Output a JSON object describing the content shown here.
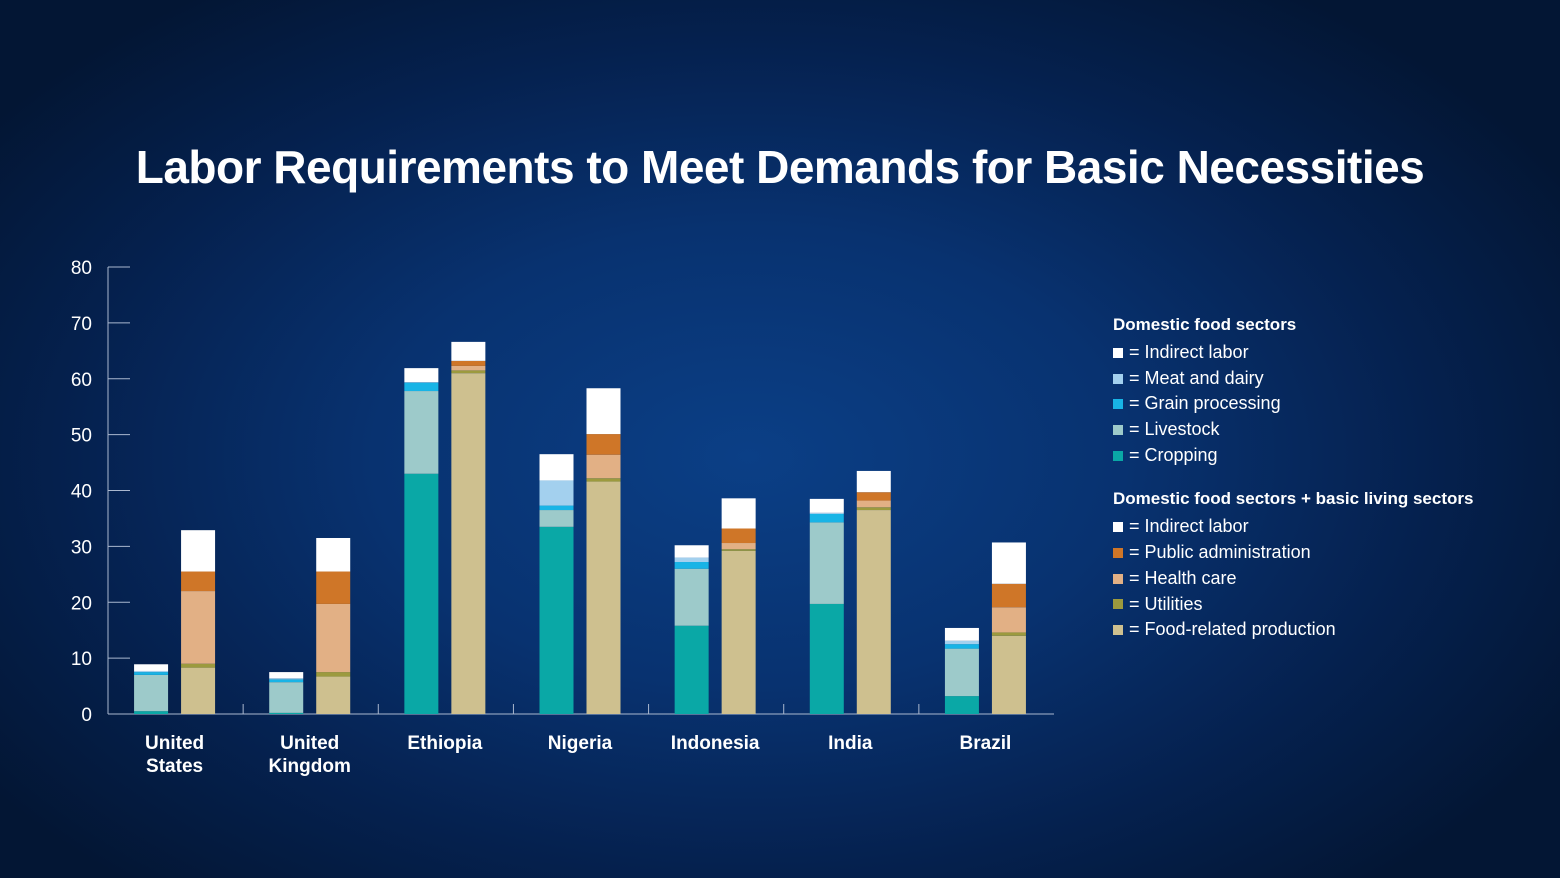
{
  "chart_data": {
    "type": "bar",
    "title": "Labor Requirements to Meet Demands for Basic Necessities",
    "ylim": [
      0,
      80
    ],
    "yticks": [
      0,
      10,
      20,
      30,
      40,
      50,
      60,
      70,
      80
    ],
    "categories": [
      "United States",
      "United Kingdom",
      "Ethiopia",
      "Nigeria",
      "Indonesia",
      "India",
      "Brazil"
    ],
    "category_lines": [
      [
        "United",
        "States"
      ],
      [
        "United",
        "Kingdom"
      ],
      [
        "Ethiopia"
      ],
      [
        "Nigeria"
      ],
      [
        "Indonesia"
      ],
      [
        "India"
      ],
      [
        "Brazil"
      ]
    ],
    "stack_groups": [
      {
        "name": "Domestic food sectors",
        "components": [
          {
            "name": "Cropping",
            "color": "#0aa8a6",
            "values": [
              0.5,
              0.2,
              43.0,
              33.5,
              15.8,
              19.7,
              3.2
            ]
          },
          {
            "name": "Livestock",
            "color": "#9dcaca",
            "values": [
              6.5,
              5.5,
              14.8,
              3.0,
              10.2,
              14.6,
              8.5
            ]
          },
          {
            "name": "Grain processing",
            "color": "#18b4e6",
            "values": [
              0.5,
              0.5,
              1.5,
              0.8,
              1.2,
              1.5,
              0.8
            ]
          },
          {
            "name": "Meat and dairy",
            "color": "#a3d0ee",
            "values": [
              0.2,
              0.2,
              0.1,
              4.5,
              0.8,
              0.2,
              0.6
            ]
          },
          {
            "name": "Indirect labor",
            "color": "#ffffff",
            "values": [
              1.2,
              1.1,
              2.5,
              4.7,
              2.2,
              2.5,
              2.3
            ]
          }
        ]
      },
      {
        "name": "Domestic food sectors  + basic living sectors",
        "components": [
          {
            "name": "Food-related production",
            "color": "#cec08f",
            "values": [
              8.3,
              6.7,
              61.0,
              41.6,
              29.2,
              36.5,
              14.0
            ]
          },
          {
            "name": "Utilities",
            "color": "#9c9a3e",
            "values": [
              0.7,
              0.8,
              0.5,
              0.6,
              0.3,
              0.5,
              0.6
            ]
          },
          {
            "name": "Health care",
            "color": "#e2b085",
            "values": [
              13.0,
              12.2,
              0.8,
              4.2,
              1.1,
              1.2,
              4.5
            ]
          },
          {
            "name": "Public administration",
            "color": "#cf7628",
            "values": [
              3.5,
              5.8,
              0.9,
              3.7,
              2.6,
              1.5,
              4.2
            ]
          },
          {
            "name": "Indirect labor",
            "color": "#ffffff",
            "values": [
              7.4,
              6.0,
              3.4,
              8.2,
              5.4,
              3.8,
              7.4
            ]
          }
        ]
      }
    ],
    "legend_position": "right",
    "grid": false
  }
}
